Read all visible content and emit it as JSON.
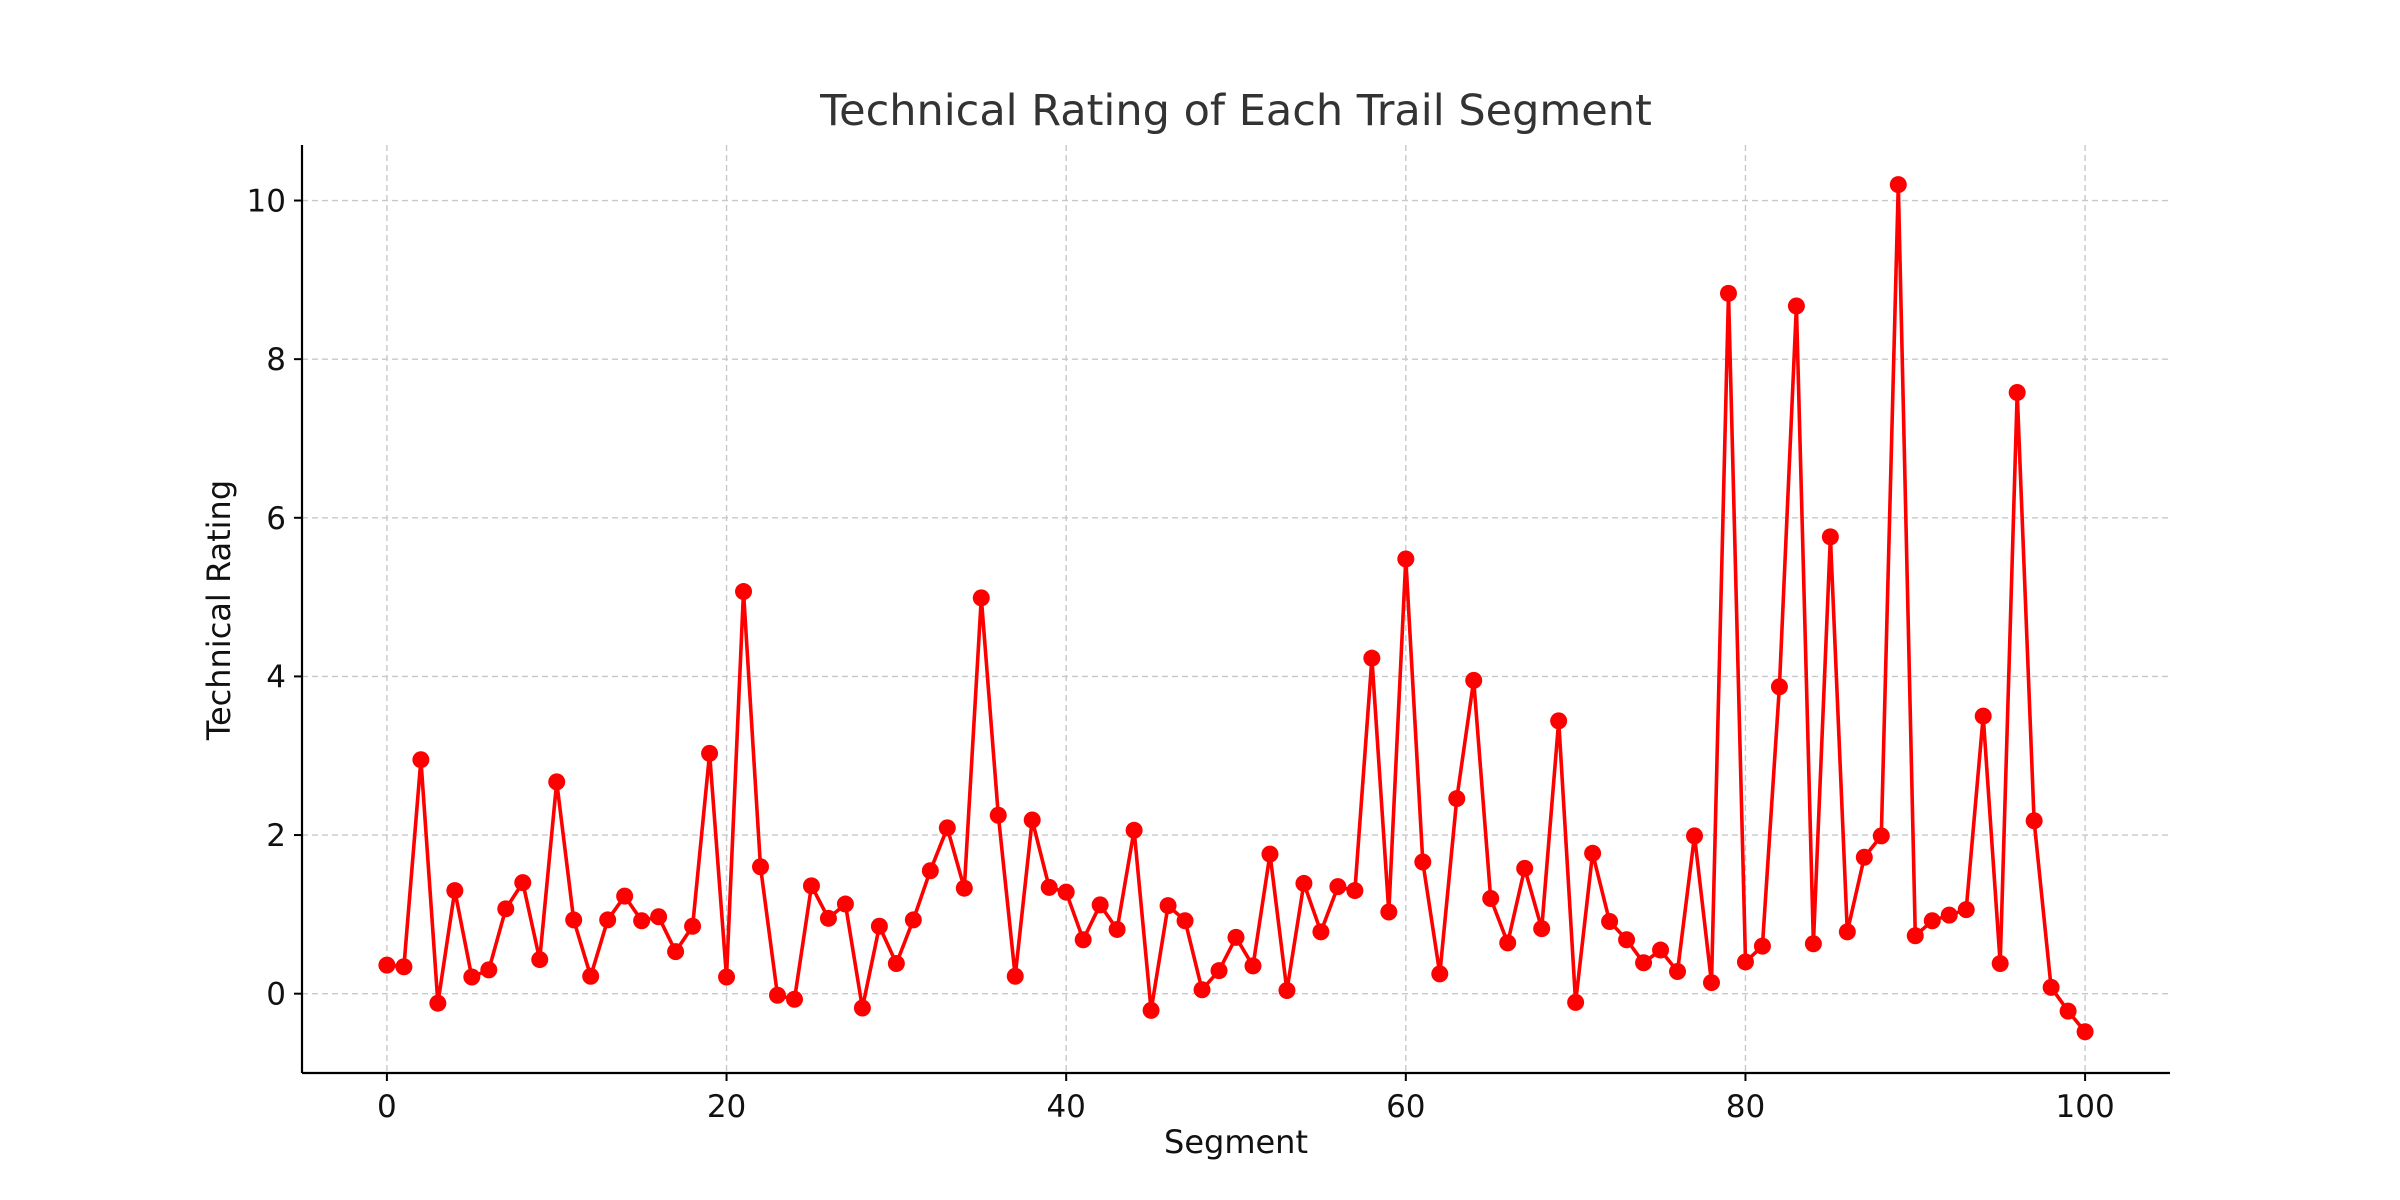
{
  "chart_data": {
    "type": "line",
    "title": "Technical Rating of Each Trail Segment",
    "xlabel": "Segment",
    "ylabel": "Technical Rating",
    "xlim": [
      -5,
      105
    ],
    "ylim": [
      -1,
      10.7
    ],
    "xticks": [
      0,
      20,
      40,
      60,
      80,
      100
    ],
    "yticks": [
      0,
      2,
      4,
      6,
      8,
      10
    ],
    "grid": true,
    "color": "#ff0000",
    "marker": "circle",
    "series": [
      {
        "x": [
          0,
          1,
          2,
          3,
          4,
          5,
          6,
          7,
          8,
          9,
          10,
          11,
          12,
          13,
          14,
          15,
          16,
          17,
          18,
          19,
          20,
          21,
          22,
          23,
          24,
          25,
          26,
          27,
          28,
          29,
          30,
          31,
          32,
          33,
          34,
          35,
          36,
          37,
          38,
          39,
          40,
          41,
          42,
          43,
          44,
          45,
          46,
          47,
          48,
          49,
          50,
          51,
          52,
          53,
          54,
          55,
          56,
          57,
          58,
          59,
          60,
          61,
          62,
          63,
          64,
          65,
          66,
          67,
          68,
          69,
          70,
          71,
          72,
          73,
          74,
          75,
          76,
          77,
          78,
          79,
          80,
          81,
          82,
          83,
          84,
          85,
          86,
          87,
          88,
          89,
          90,
          91,
          92,
          93,
          94,
          95,
          96,
          97,
          98,
          99,
          100
        ],
        "values": [
          0.36,
          0.34,
          2.95,
          -0.12,
          1.3,
          0.21,
          0.3,
          1.07,
          1.4,
          0.43,
          2.67,
          0.93,
          0.22,
          0.93,
          1.23,
          0.92,
          0.97,
          0.53,
          0.85,
          3.03,
          0.21,
          5.07,
          1.6,
          -0.02,
          -0.07,
          1.36,
          0.95,
          1.13,
          -0.18,
          0.85,
          0.38,
          0.93,
          1.55,
          2.09,
          1.33,
          4.99,
          2.25,
          0.22,
          2.19,
          1.34,
          1.28,
          0.68,
          1.12,
          0.81,
          2.06,
          -0.21,
          1.11,
          0.92,
          0.05,
          0.29,
          0.71,
          0.35,
          1.76,
          0.04,
          1.39,
          0.78,
          1.35,
          1.3,
          4.23,
          1.03,
          5.48,
          1.66,
          0.25,
          2.46,
          3.95,
          1.2,
          0.64,
          1.58,
          0.82,
          3.44,
          -0.11,
          1.77,
          0.91,
          0.68,
          0.39,
          0.55,
          0.28,
          1.99,
          0.14,
          8.83,
          0.4,
          0.6,
          3.87,
          8.67,
          0.63,
          5.76,
          0.78,
          1.72,
          1.99,
          10.2,
          0.73,
          0.92,
          0.99,
          1.06,
          3.5,
          0.38,
          7.58,
          2.18,
          0.08,
          -0.22,
          -0.48
        ]
      }
    ]
  }
}
